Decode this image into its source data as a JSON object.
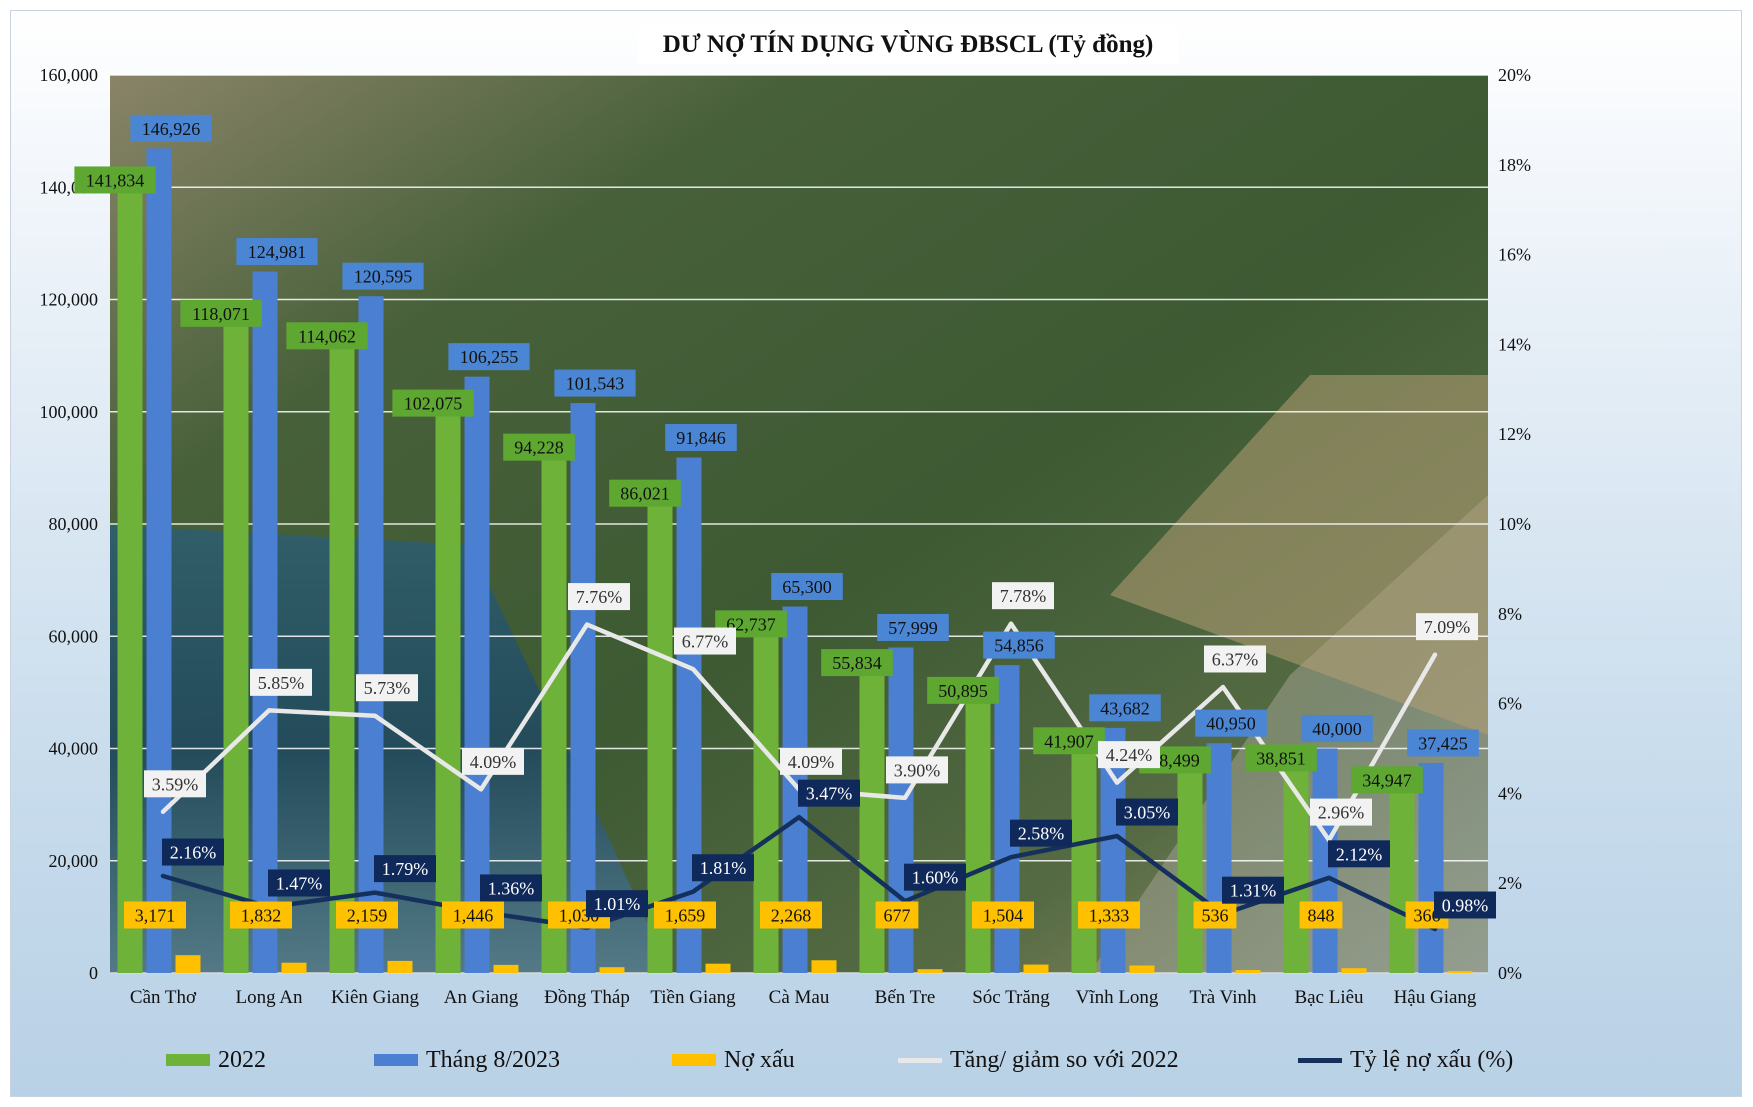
{
  "title": "DƯ NỢ TÍN DỤNG VÙNG ĐBSCL (Tỷ đồng)",
  "colors": {
    "green": "#6fb23a",
    "blue": "#4a7fd1",
    "yellow": "#ffc000",
    "white_line": "#e8e8e8",
    "navy_line": "#16305e",
    "label_green": "#5ea832",
    "label_blue": "#4a86d4",
    "label_yellow": "#ffc000",
    "label_white": "#f2f2f2",
    "label_navy": "#0f2a5a"
  },
  "legend": [
    {
      "label": "2022",
      "kind": "bar",
      "color": "#6fb23a"
    },
    {
      "label": "Tháng 8/2023",
      "kind": "bar",
      "color": "#4a7fd1"
    },
    {
      "label": "Nợ xấu",
      "kind": "bar",
      "color": "#ffc000"
    },
    {
      "label": "Tăng/ giảm so với 2022",
      "kind": "line",
      "color": "#e8e8e8"
    },
    {
      "label": "Tỷ lệ nợ xấu (%)",
      "kind": "line",
      "color": "#16305e"
    }
  ],
  "chart_data": {
    "type": "bar",
    "title": "DƯ NỢ TÍN DỤNG VÙNG ĐBSCL (Tỷ đồng)",
    "categories": [
      "Cần Thơ",
      "Long An",
      "Kiên Giang",
      "An Giang",
      "Đồng Tháp",
      "Tiền Giang",
      "Cà Mau",
      "Bến Tre",
      "Sóc Trăng",
      "Vĩnh Long",
      "Trà Vinh",
      "Bạc Liêu",
      "Hậu Giang"
    ],
    "ylim": [
      0,
      160000
    ],
    "y2lim": [
      0,
      20
    ],
    "yticks": [
      "0",
      "20,000",
      "40,000",
      "60,000",
      "80,000",
      "100,000",
      "120,000",
      "140,000",
      "160,000"
    ],
    "y2ticks": [
      "0%",
      "2%",
      "4%",
      "6%",
      "8%",
      "10%",
      "12%",
      "14%",
      "16%",
      "18%",
      "20%"
    ],
    "legend_position": "bottom",
    "series": [
      {
        "name": "2022",
        "type": "bar",
        "axis": "left",
        "values": [
          141834,
          118071,
          114062,
          102075,
          94228,
          86021,
          62737,
          55834,
          50895,
          41907,
          38499,
          38851,
          34947
        ],
        "labels": [
          "141,834",
          "118,071",
          "114,062",
          "102,075",
          "94,228",
          "86,021",
          "62,737",
          "55,834",
          "50,895",
          "41,907",
          "38,499",
          "38,851",
          "34,947"
        ]
      },
      {
        "name": "Tháng 8/2023",
        "type": "bar",
        "axis": "left",
        "values": [
          146926,
          124981,
          120595,
          106255,
          101543,
          91846,
          65300,
          57999,
          54856,
          43682,
          40950,
          40000,
          37425
        ],
        "labels": [
          "146,926",
          "124,981",
          "120,595",
          "106,255",
          "101,543",
          "91,846",
          "65,300",
          "57,999",
          "54,856",
          "43,682",
          "40,950",
          "40,000",
          "37,425"
        ]
      },
      {
        "name": "Nợ xấu",
        "type": "bar",
        "axis": "left",
        "values": [
          3171,
          1832,
          2159,
          1446,
          1030,
          1659,
          2268,
          677,
          1504,
          1333,
          536,
          848,
          366
        ],
        "labels": [
          "3,171",
          "1,832",
          "2,159",
          "1,446",
          "1,030",
          "1,659",
          "2,268",
          "677",
          "1,504",
          "1,333",
          "536",
          "848",
          "366"
        ]
      },
      {
        "name": "Tăng/ giảm so với 2022",
        "type": "line",
        "axis": "right",
        "values": [
          3.59,
          5.85,
          5.73,
          4.09,
          7.76,
          6.77,
          4.09,
          3.9,
          7.78,
          4.24,
          6.37,
          2.96,
          7.09
        ],
        "labels": [
          "3.59%",
          "5.85%",
          "5.73%",
          "4.09%",
          "7.76%",
          "6.77%",
          "4.09%",
          "3.90%",
          "7.78%",
          "4.24%",
          "6.37%",
          "2.96%",
          "7.09%"
        ]
      },
      {
        "name": "Tỷ lệ nợ xấu (%)",
        "type": "line",
        "axis": "right",
        "values": [
          2.16,
          1.47,
          1.79,
          1.36,
          1.01,
          1.81,
          3.47,
          1.6,
          2.58,
          3.05,
          1.31,
          2.12,
          0.98
        ],
        "labels": [
          "2.16%",
          "1.47%",
          "1.79%",
          "1.36%",
          "1.01%",
          "1.81%",
          "3.47%",
          "1.60%",
          "2.58%",
          "3.05%",
          "1.31%",
          "2.12%",
          "0.98%"
        ]
      }
    ]
  }
}
